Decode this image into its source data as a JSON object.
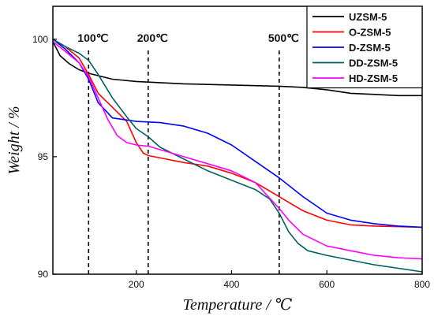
{
  "chart_data": {
    "type": "line",
    "xlabel": "Temperature / ℃",
    "ylabel": "Weight / %",
    "xlim": [
      25,
      800
    ],
    "ylim": [
      90,
      101.4
    ],
    "x_ticks": [
      200,
      400,
      600,
      800
    ],
    "y_ticks": [
      90,
      95,
      100
    ],
    "grid": false,
    "legend_position": "top-right",
    "annotations": [
      {
        "x": 100,
        "label": "100℃"
      },
      {
        "x": 225,
        "label": "200℃"
      },
      {
        "x": 500,
        "label": "500℃"
      }
    ],
    "series": [
      {
        "name": "UZSM-5",
        "color": "#000000",
        "points": [
          [
            25,
            99.9
          ],
          [
            40,
            99.3
          ],
          [
            60,
            98.95
          ],
          [
            80,
            98.7
          ],
          [
            100,
            98.55
          ],
          [
            150,
            98.3
          ],
          [
            200,
            98.2
          ],
          [
            300,
            98.1
          ],
          [
            400,
            98.05
          ],
          [
            500,
            98.0
          ],
          [
            550,
            97.95
          ],
          [
            600,
            97.85
          ],
          [
            650,
            97.7
          ],
          [
            700,
            97.65
          ],
          [
            750,
            97.6
          ],
          [
            800,
            97.6
          ]
        ]
      },
      {
        "name": "O-ZSM-5",
        "color": "#ff0000",
        "points": [
          [
            25,
            100.0
          ],
          [
            50,
            99.7
          ],
          [
            80,
            99.2
          ],
          [
            100,
            98.5
          ],
          [
            120,
            97.7
          ],
          [
            150,
            97.1
          ],
          [
            180,
            96.5
          ],
          [
            200,
            95.6
          ],
          [
            215,
            95.15
          ],
          [
            225,
            95.05
          ],
          [
            250,
            94.95
          ],
          [
            300,
            94.75
          ],
          [
            350,
            94.6
          ],
          [
            400,
            94.3
          ],
          [
            450,
            93.9
          ],
          [
            500,
            93.3
          ],
          [
            550,
            92.7
          ],
          [
            600,
            92.3
          ],
          [
            650,
            92.1
          ],
          [
            700,
            92.05
          ],
          [
            800,
            92.0
          ]
        ]
      },
      {
        "name": "D-ZSM-5",
        "color": "#0000ff",
        "points": [
          [
            25,
            100.0
          ],
          [
            50,
            99.6
          ],
          [
            80,
            99.0
          ],
          [
            100,
            98.3
          ],
          [
            120,
            97.3
          ],
          [
            150,
            96.65
          ],
          [
            200,
            96.5
          ],
          [
            250,
            96.45
          ],
          [
            300,
            96.3
          ],
          [
            350,
            96.0
          ],
          [
            400,
            95.5
          ],
          [
            450,
            94.8
          ],
          [
            500,
            94.1
          ],
          [
            550,
            93.3
          ],
          [
            600,
            92.6
          ],
          [
            650,
            92.3
          ],
          [
            700,
            92.15
          ],
          [
            750,
            92.05
          ],
          [
            800,
            92.0
          ]
        ]
      },
      {
        "name": "DD-ZSM-5",
        "color": "#006060",
        "points": [
          [
            25,
            100.0
          ],
          [
            50,
            99.7
          ],
          [
            80,
            99.4
          ],
          [
            100,
            99.1
          ],
          [
            120,
            98.5
          ],
          [
            150,
            97.5
          ],
          [
            180,
            96.7
          ],
          [
            200,
            96.2
          ],
          [
            225,
            95.85
          ],
          [
            250,
            95.4
          ],
          [
            300,
            94.9
          ],
          [
            350,
            94.4
          ],
          [
            400,
            94.0
          ],
          [
            450,
            93.6
          ],
          [
            480,
            93.2
          ],
          [
            500,
            92.6
          ],
          [
            520,
            91.8
          ],
          [
            540,
            91.3
          ],
          [
            560,
            91.0
          ],
          [
            600,
            90.8
          ],
          [
            650,
            90.6
          ],
          [
            700,
            90.4
          ],
          [
            750,
            90.25
          ],
          [
            800,
            90.1
          ]
        ]
      },
      {
        "name": "HD-ZSM-5",
        "color": "#ff00ff",
        "points": [
          [
            25,
            99.9
          ],
          [
            50,
            99.5
          ],
          [
            80,
            99.0
          ],
          [
            100,
            98.4
          ],
          [
            120,
            97.5
          ],
          [
            140,
            96.6
          ],
          [
            160,
            95.9
          ],
          [
            180,
            95.6
          ],
          [
            200,
            95.5
          ],
          [
            225,
            95.45
          ],
          [
            250,
            95.3
          ],
          [
            300,
            95.0
          ],
          [
            350,
            94.7
          ],
          [
            400,
            94.4
          ],
          [
            450,
            93.9
          ],
          [
            500,
            92.8
          ],
          [
            520,
            92.3
          ],
          [
            550,
            91.7
          ],
          [
            600,
            91.2
          ],
          [
            650,
            91.0
          ],
          [
            700,
            90.8
          ],
          [
            750,
            90.7
          ],
          [
            800,
            90.65
          ]
        ]
      }
    ]
  }
}
